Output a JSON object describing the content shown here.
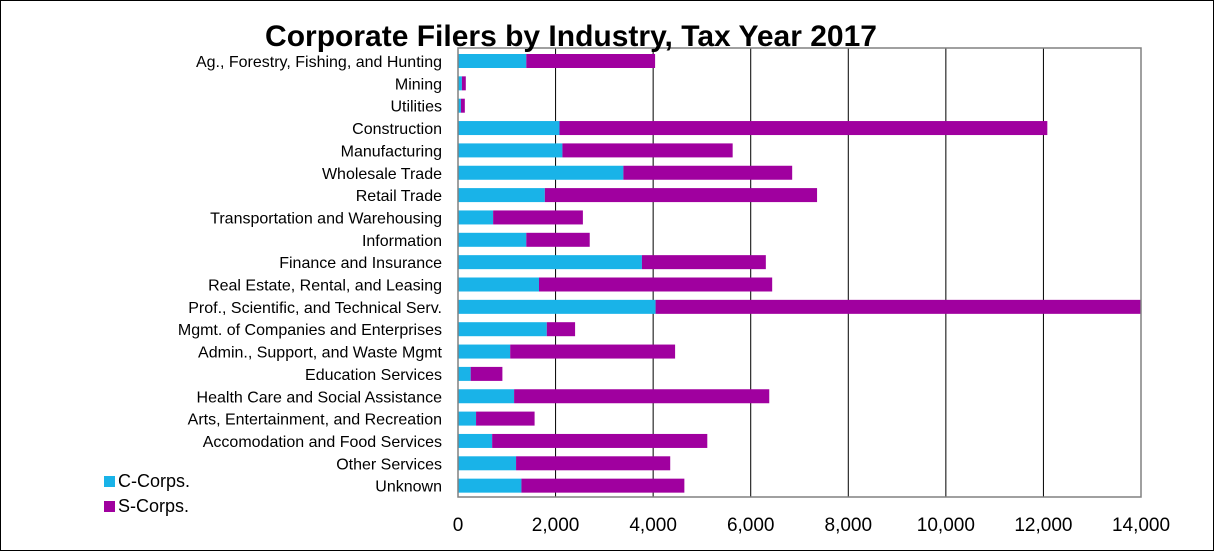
{
  "chart_data": {
    "type": "bar",
    "orientation": "horizontal",
    "stacked": true,
    "title": "Corporate Filers by Industry, Tax Year 2017",
    "xlabel": "",
    "ylabel": "",
    "xlim": [
      0,
      14000
    ],
    "x_ticks": [
      "0",
      "2,000",
      "4,000",
      "6,000",
      "8,000",
      "10,000",
      "12,000",
      "14,000"
    ],
    "x_tick_values": [
      0,
      2000,
      4000,
      6000,
      8000,
      10000,
      12000,
      14000
    ],
    "grid": true,
    "legend_position": "bottom-left",
    "categories": [
      "Ag., Forestry, Fishing, and Hunting",
      "Mining",
      "Utilities",
      "Construction",
      "Manufacturing",
      "Wholesale Trade",
      "Retail Trade",
      "Transportation and Warehousing",
      "Information",
      "Finance and Insurance",
      "Real Estate, Rental, and Leasing",
      "Prof., Scientific, and Technical Serv.",
      "Mgmt. of Companies and Enterprises",
      "Admin., Support, and Waste Mgmt",
      "Education Services",
      "Health Care and Social Assistance",
      "Arts, Entertainment, and Recreation",
      "Accomodation and Food Services",
      "Other Services",
      "Unknown"
    ],
    "series": [
      {
        "name": "C-Corps.",
        "color": "#19b3e8",
        "values": [
          1400,
          80,
          60,
          2080,
          2140,
          3390,
          1780,
          720,
          1400,
          3770,
          1660,
          4050,
          1820,
          1070,
          260,
          1150,
          370,
          700,
          1190,
          1300
        ]
      },
      {
        "name": "S-Corps.",
        "color": "#a0009f",
        "values": [
          2640,
          80,
          80,
          10000,
          3490,
          3460,
          5580,
          1840,
          1300,
          2540,
          4780,
          9950,
          580,
          3380,
          650,
          5230,
          1200,
          4410,
          3160,
          3340
        ]
      }
    ]
  }
}
